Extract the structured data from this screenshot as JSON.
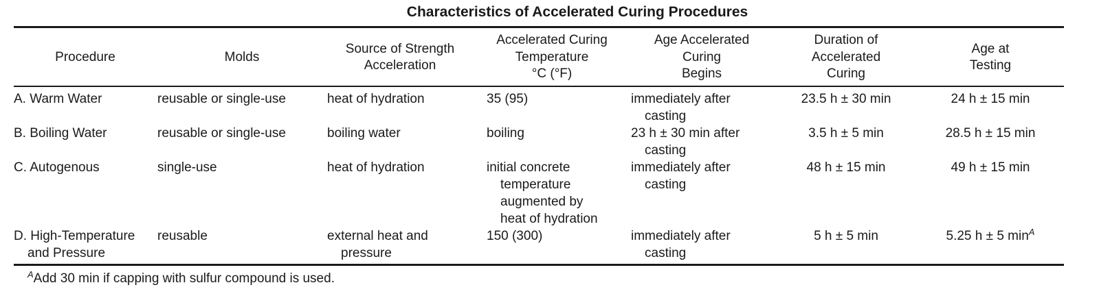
{
  "table": {
    "title": "Characteristics of Accelerated Curing Procedures",
    "headers": [
      "Procedure",
      "Molds",
      "Source of Strength\nAcceleration",
      "Accelerated Curing\nTemperature\n°C (°F)",
      "Age Accelerated\nCuring\nBegins",
      "Duration of\nAccelerated\nCuring",
      "Age at\nTesting"
    ],
    "rows": [
      {
        "procedure": [
          "A. Warm Water"
        ],
        "molds": "reusable or single-use",
        "source": [
          "heat of hydration"
        ],
        "temperature": [
          "35 (95)"
        ],
        "age_begins": [
          "immediately after",
          "casting"
        ],
        "duration": "23.5 h ± 30 min",
        "age_testing": "24 h ± 15 min",
        "age_testing_note": ""
      },
      {
        "procedure": [
          "B. Boiling Water"
        ],
        "molds": "reusable or single-use",
        "source": [
          "boiling water"
        ],
        "temperature": [
          "boiling"
        ],
        "age_begins": [
          "23 h ± 30 min after",
          "casting"
        ],
        "duration": "3.5 h ± 5 min",
        "age_testing": "28.5 h ± 15 min",
        "age_testing_note": ""
      },
      {
        "procedure": [
          "C. Autogenous"
        ],
        "molds": "single-use",
        "source": [
          "heat of hydration"
        ],
        "temperature": [
          "initial concrete",
          "temperature",
          "augmented by",
          "heat of hydration"
        ],
        "age_begins": [
          "immediately after",
          "casting"
        ],
        "duration": "48 h ± 15 min",
        "age_testing": "49 h ± 15 min",
        "age_testing_note": ""
      },
      {
        "procedure": [
          "D. High-Temperature",
          "and Pressure"
        ],
        "molds": "reusable",
        "source": [
          "external heat and",
          "pressure"
        ],
        "temperature": [
          "150 (300)"
        ],
        "age_begins": [
          "immediately after",
          "casting"
        ],
        "duration": "5 h ± 5 min",
        "age_testing": "5.25 h ± 5 min",
        "age_testing_note": "A"
      }
    ],
    "footnote": {
      "marker": "A",
      "text": "Add 30 min if capping with sulfur compound is used."
    }
  }
}
